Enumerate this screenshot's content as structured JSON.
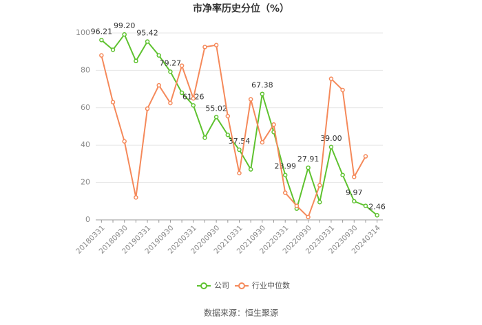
{
  "chart_data": {
    "type": "line",
    "title": "市净率历史分位（%）",
    "categories": [
      "20180331",
      null,
      "20180930",
      null,
      "20190331",
      null,
      "20190930",
      null,
      "20200331",
      null,
      "20200930",
      null,
      "20210331",
      null,
      "20210930",
      null,
      "20220331",
      null,
      "20220930",
      null,
      "20230331",
      null,
      "20230930",
      null,
      "20240314"
    ],
    "series": [
      {
        "name": "公司",
        "color": "#5ec22f",
        "values": [
          96.21,
          91,
          99.2,
          85,
          95.42,
          88,
          79.27,
          68,
          61.26,
          44,
          55.02,
          45.5,
          37.54,
          27,
          67.38,
          47,
          23.99,
          6,
          27.91,
          9.5,
          39.0,
          24,
          9.97,
          7.5,
          2.46
        ],
        "value_labels": [
          "96.21",
          null,
          "99.20",
          null,
          "95.42",
          null,
          "79.27",
          null,
          "61.26",
          null,
          "55.02",
          null,
          "37.54",
          null,
          "67.38",
          null,
          "23.99",
          null,
          "27.91",
          null,
          "39.00",
          null,
          "9.97",
          null,
          "2.46"
        ]
      },
      {
        "name": "行业中位数",
        "color": "#f5895a",
        "values": [
          88,
          63,
          42,
          12,
          59.5,
          72,
          62.5,
          82.5,
          65,
          92.5,
          93.5,
          55.5,
          25,
          64.5,
          41.5,
          51,
          14.5,
          7.5,
          1.5,
          18.5,
          75.5,
          69.5,
          23,
          34,
          null
        ]
      }
    ],
    "ylim": [
      0,
      100
    ],
    "yticks": [
      0,
      20,
      40,
      60,
      80,
      100
    ],
    "grid": true,
    "source": "数据来源：恒生聚源"
  }
}
